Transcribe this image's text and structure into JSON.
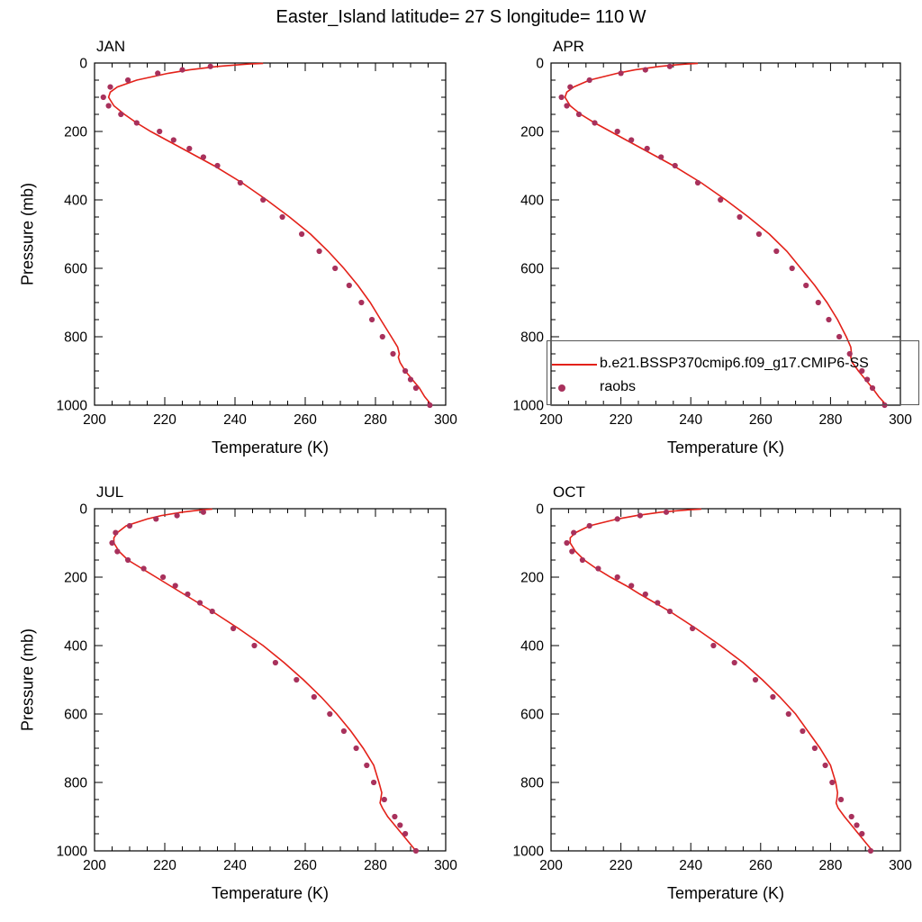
{
  "title": "Easter_Island  latitude= 27 S longitude= 110 W",
  "chart_data": {
    "type": "line",
    "title": "Easter_Island  latitude= 27 S longitude= 110 W",
    "xlabel": "Temperature (K)",
    "ylabel": "Pressure (mb)",
    "xlim": [
      200,
      300
    ],
    "ylim_top": 0,
    "ylim_bottom": 1000,
    "xticks": [
      200,
      220,
      240,
      260,
      280,
      300
    ],
    "yticks": [
      0,
      200,
      400,
      600,
      800,
      1000
    ],
    "x_minor_step": 5,
    "y_minor_step": 50,
    "grid": false,
    "legend_position": "inside-top-right-panel",
    "colors": {
      "model": "#e32119",
      "raobs": "#a8315c",
      "legend_border": "#555555"
    },
    "legend_entries": [
      {
        "type": "line",
        "label": "b.e21.BSSP370cmip6.f09_g17.CMIP6-SS"
      },
      {
        "type": "dot",
        "label": "raobs"
      }
    ],
    "model_pressure": [
      1,
      3,
      5,
      10,
      20,
      30,
      50,
      70,
      85,
      100,
      125,
      150,
      175,
      200,
      225,
      250,
      300,
      350,
      400,
      450,
      500,
      550,
      600,
      650,
      700,
      750,
      800,
      830,
      850,
      860,
      875,
      900,
      925,
      950,
      975,
      1005
    ],
    "raobs_pressure": [
      10,
      20,
      30,
      50,
      70,
      100,
      125,
      150,
      175,
      200,
      225,
      250,
      275,
      300,
      350,
      400,
      450,
      500,
      550,
      600,
      650,
      700,
      750,
      800,
      850,
      900,
      925,
      950,
      1000
    ],
    "panels": [
      {
        "label": "JAN",
        "model_temp": [
          248,
          244,
          241,
          235,
          227,
          221,
          212,
          206.5,
          204.5,
          204,
          205.5,
          208.5,
          212,
          216,
          220.5,
          225,
          234,
          242,
          249,
          255.5,
          261.5,
          266.5,
          271,
          275,
          278.5,
          281.5,
          284.5,
          286.3,
          286.8,
          286.5,
          287,
          288.5,
          290.5,
          292.5,
          294,
          296
        ],
        "raobs_temp": [
          233,
          225,
          218,
          209.5,
          204.5,
          202.5,
          204,
          207.5,
          212,
          218.5,
          222.5,
          227,
          231,
          235,
          241.5,
          248,
          253.5,
          259,
          264,
          268.5,
          272.5,
          276,
          279,
          282,
          285,
          288.5,
          290,
          291.5,
          295.5
        ]
      },
      {
        "label": "APR",
        "model_temp": [
          242,
          239,
          236,
          231,
          224,
          219,
          211,
          206.5,
          204.5,
          204,
          205.5,
          208.5,
          212.5,
          217,
          221.5,
          226,
          235,
          243,
          250,
          256.5,
          262.5,
          267.5,
          271.5,
          275.5,
          279,
          282,
          284.5,
          285.8,
          286,
          285.8,
          286.2,
          288,
          290,
          292,
          293.8,
          296
        ],
        "raobs_temp": [
          234,
          227,
          220,
          211,
          205.5,
          203,
          204.5,
          208,
          212.5,
          219,
          223,
          227.5,
          231.5,
          235.5,
          242,
          248.5,
          254,
          259.5,
          264.5,
          269,
          273,
          276.5,
          279.5,
          282.5,
          285.5,
          289,
          290.5,
          292,
          295.5
        ]
      },
      {
        "label": "JUL",
        "model_temp": [
          233.5,
          231,
          229,
          225,
          219,
          215,
          209,
          206.5,
          205.5,
          205.5,
          207,
          209.5,
          213.5,
          217.5,
          221.5,
          225.5,
          233.5,
          241,
          248,
          254,
          259.5,
          264.5,
          269,
          273,
          276.5,
          279.5,
          281,
          281.8,
          281.5,
          281.3,
          282,
          283.5,
          285.5,
          287.5,
          289.5,
          291.5
        ],
        "raobs_temp": [
          231,
          223.5,
          217.5,
          210,
          206,
          205,
          206.5,
          209.5,
          214,
          219.5,
          223,
          226.5,
          230,
          233.5,
          239.5,
          245.5,
          251.5,
          257.5,
          262.5,
          267,
          271,
          274.5,
          277.5,
          279.5,
          282.5,
          285.5,
          287,
          288.5,
          291.5
        ]
      },
      {
        "label": "OCT",
        "model_temp": [
          243,
          240,
          237,
          231.5,
          224.5,
          219,
          211,
          207,
          205.5,
          205.5,
          207,
          209.5,
          213,
          217,
          221.5,
          225.5,
          234,
          241.5,
          248.5,
          255,
          260.5,
          265.5,
          270,
          273.5,
          277,
          280,
          281.5,
          282,
          281.8,
          281.6,
          282.2,
          284,
          286,
          288,
          290,
          292
        ],
        "raobs_temp": [
          233,
          225.5,
          219,
          211,
          206.5,
          204.5,
          206,
          209,
          213.5,
          219,
          223,
          227,
          230.5,
          234,
          240.5,
          246.5,
          252.5,
          258.5,
          263.5,
          268,
          272,
          275.5,
          278.5,
          280.5,
          283,
          286,
          287.5,
          289,
          291.5
        ]
      }
    ]
  }
}
